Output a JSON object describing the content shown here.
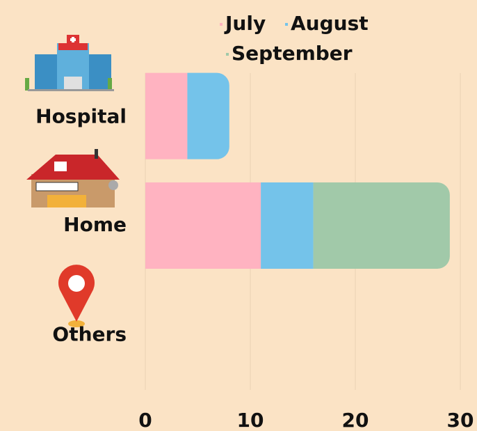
{
  "chart_data": {
    "type": "stacked-barh",
    "categories": [
      "Hospital",
      "Home",
      "Others"
    ],
    "series": [
      {
        "name": "July",
        "color": "#ffb3c1",
        "values": [
          4,
          11,
          0
        ]
      },
      {
        "name": "August",
        "color": "#74c3ea",
        "values": [
          4,
          5,
          0
        ]
      },
      {
        "name": "September",
        "color": "#a1c9a9",
        "values": [
          0,
          13,
          0
        ]
      }
    ],
    "xlim": [
      0,
      30
    ],
    "xticks": [
      0,
      10,
      20,
      30
    ],
    "grid": true
  }
}
